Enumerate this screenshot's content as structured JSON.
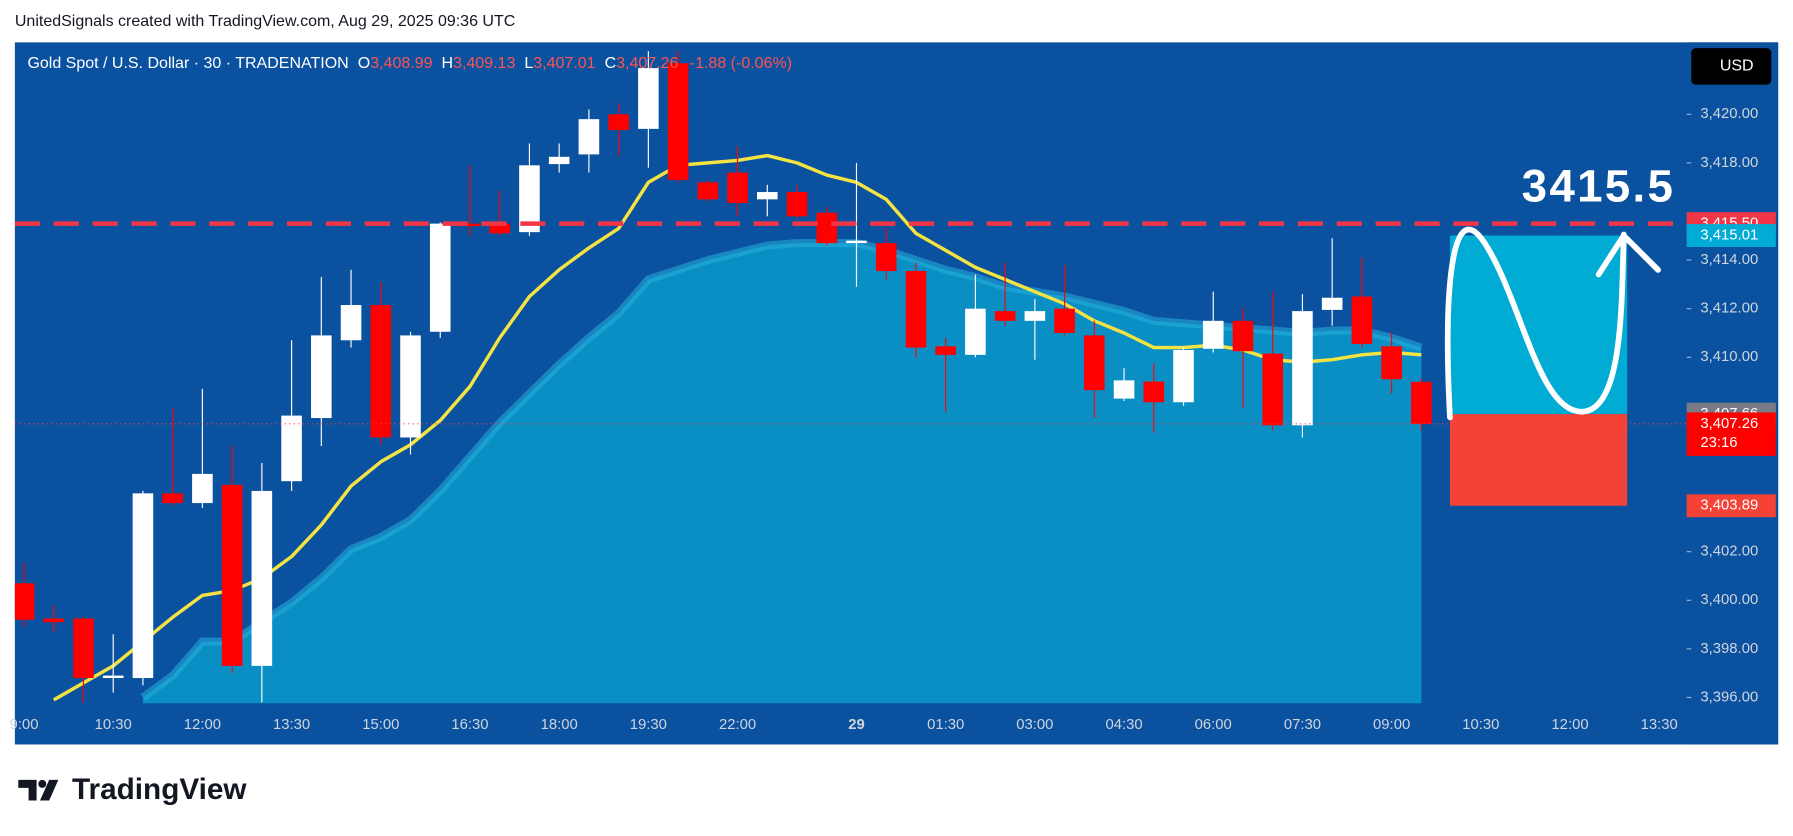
{
  "attribution": "UnitedSignals created with TradingView.com, Aug 29, 2025 09:36 UTC",
  "brand": "TradingView",
  "chart_data": {
    "type": "candlestick",
    "legend": {
      "symbol": "Gold Spot / U.S. Dollar · 30 · TRADENATION",
      "open_key": "O",
      "open": "3,408.99",
      "high_key": "H",
      "high": "3,409.13",
      "low_key": "L",
      "low": "3,407.01",
      "close_key": "C",
      "close": "3,407.26",
      "change": "-1.88 (-0.06%)"
    },
    "currency": "USD",
    "categories": [
      "9:00",
      null,
      null,
      "10:30",
      null,
      null,
      "12:00",
      null,
      null,
      "13:30",
      null,
      null,
      "15:00",
      null,
      null,
      "16:30",
      null,
      null,
      "18:00",
      null,
      null,
      "19:30",
      null,
      null,
      "22:00",
      null,
      null,
      null,
      "29",
      null,
      null,
      "01:30",
      null,
      null,
      "03:00",
      null,
      null,
      "04:30",
      null,
      null,
      "06:00",
      null,
      null,
      "07:30",
      null,
      null,
      "09:00",
      null,
      null,
      "10:30",
      null,
      null,
      "12:00",
      null,
      null,
      "13:30"
    ],
    "open": [
      3400.7,
      3399.25,
      3399.25,
      3396.8,
      3396.8,
      3404.4,
      3404.0,
      3404.75,
      3397.3,
      3404.9,
      3407.5,
      3410.7,
      3412.15,
      3406.7,
      3411.05,
      3415.5,
      3415.5,
      3415.15,
      3417.95,
      3418.35,
      3420.0,
      3419.4,
      3422.1,
      3417.2,
      3417.6,
      3416.5,
      3416.8,
      3415.95,
      3414.7,
      3414.7,
      3413.55,
      3410.45,
      3410.1,
      3411.9,
      3411.5,
      3412.0,
      3410.9,
      3408.3,
      3409.0,
      3408.15,
      3410.35,
      3411.5,
      3410.15,
      3407.2,
      3411.95,
      3412.5,
      3410.45,
      3408.99,
      null,
      null,
      null,
      null,
      null,
      null,
      null,
      null
    ],
    "high": [
      3401.55,
      3399.8,
      3399.3,
      3398.6,
      3404.5,
      3407.9,
      3408.7,
      3406.35,
      3405.65,
      3410.7,
      3413.3,
      3413.6,
      3413.1,
      3411.05,
      3415.55,
      3417.9,
      3416.85,
      3418.8,
      3418.8,
      3420.2,
      3420.45,
      3422.6,
      3422.6,
      3417.3,
      3418.7,
      3417.1,
      3417.1,
      3416.2,
      3418.0,
      3415.3,
      3413.9,
      3410.8,
      3413.4,
      3413.9,
      3412.4,
      3413.8,
      3411.5,
      3409.55,
      3409.75,
      3410.4,
      3412.7,
      3412.0,
      3412.7,
      3412.6,
      3414.9,
      3414.1,
      3411.05,
      3409.13,
      null,
      null,
      null,
      null,
      null,
      null,
      null,
      null
    ],
    "low": [
      3398.9,
      3398.7,
      3395.8,
      3396.2,
      3396.5,
      3403.9,
      3403.8,
      3397.0,
      3395.8,
      3404.5,
      3406.35,
      3410.4,
      3406.4,
      3406.0,
      3410.8,
      3415.0,
      3415.0,
      3415.0,
      3417.6,
      3417.6,
      3418.3,
      3417.8,
      3417.2,
      3416.4,
      3415.8,
      3415.8,
      3415.7,
      3414.6,
      3412.9,
      3413.2,
      3410.0,
      3407.75,
      3410.0,
      3411.3,
      3409.9,
      3410.9,
      3407.5,
      3408.2,
      3406.9,
      3408.0,
      3410.2,
      3407.9,
      3407.0,
      3406.7,
      3411.3,
      3410.4,
      3408.5,
      3407.01,
      null,
      null,
      null,
      null,
      null,
      null,
      null,
      null
    ],
    "close": [
      3399.2,
      3399.1,
      3396.8,
      3396.9,
      3404.4,
      3404.0,
      3405.2,
      3397.3,
      3404.5,
      3407.6,
      3410.9,
      3412.15,
      3406.7,
      3410.9,
      3415.5,
      3415.4,
      3415.1,
      3417.9,
      3418.25,
      3419.8,
      3419.35,
      3421.9,
      3417.3,
      3416.5,
      3416.35,
      3416.8,
      3415.8,
      3414.7,
      3414.8,
      3413.55,
      3410.4,
      3410.1,
      3412.0,
      3411.5,
      3411.9,
      3411.0,
      3408.65,
      3409.05,
      3408.15,
      3410.3,
      3411.5,
      3410.25,
      3407.2,
      3411.9,
      3412.45,
      3410.55,
      3409.1,
      3407.26,
      null,
      null,
      null,
      null,
      null,
      null,
      null,
      null
    ],
    "up_color": "#ffffff",
    "down_color": "#ff0000",
    "overlays": [
      {
        "kind": "area",
        "color": "#0a8fc4",
        "edge_color": "#27b0dc",
        "values": [
          null,
          null,
          null,
          null,
          3396.0,
          3396.9,
          3398.3,
          3398.3,
          3399.1,
          3399.9,
          3400.9,
          3402.1,
          3402.6,
          3403.3,
          3404.5,
          3405.9,
          3407.3,
          3408.5,
          3409.7,
          3410.8,
          3411.8,
          3413.2,
          3413.6,
          3414.0,
          3414.3,
          3414.6,
          3414.7,
          3414.7,
          3414.7,
          3414.4,
          3414.0,
          3413.6,
          3413.3,
          3412.9,
          3412.7,
          3412.5,
          3412.2,
          3411.9,
          3411.5,
          3411.4,
          3411.3,
          3411.2,
          3411.1,
          3411.0,
          3411.1,
          3411.1,
          3410.8,
          3410.4,
          null,
          null,
          null,
          null,
          null,
          null,
          null,
          null
        ]
      },
      {
        "kind": "line",
        "color": "#f5e342",
        "below_color": "#9be08a",
        "values": [
          null,
          3395.9,
          3396.6,
          3397.3,
          3398.3,
          3399.3,
          3400.2,
          3400.4,
          3400.9,
          3401.8,
          3403.1,
          3404.7,
          3405.7,
          3406.4,
          3407.4,
          3408.8,
          3410.8,
          3412.5,
          3413.6,
          3414.5,
          3415.3,
          3417.2,
          3417.9,
          3418.0,
          3418.1,
          3418.3,
          3418.0,
          3417.5,
          3417.2,
          3416.5,
          3415.1,
          3414.4,
          3413.7,
          3413.2,
          3412.7,
          3412.2,
          3411.5,
          3411.0,
          3410.4,
          3410.4,
          3410.5,
          3410.3,
          3409.9,
          3409.8,
          3409.9,
          3410.1,
          3410.2,
          3410.1,
          null,
          null,
          null,
          null,
          null,
          null,
          null,
          null
        ]
      }
    ],
    "ylim": [
      3395.76,
      3422.96
    ],
    "yticks": [
      {
        "value": 3396,
        "label": "3,396.00"
      },
      {
        "value": 3398,
        "label": "3,398.00"
      },
      {
        "value": 3400,
        "label": "3,400.00"
      },
      {
        "value": 3402,
        "label": "3,402.00"
      },
      {
        "value": 3410,
        "label": "3,410.00"
      },
      {
        "value": 3412,
        "label": "3,412.00"
      },
      {
        "value": 3414,
        "label": "3,414.00"
      },
      {
        "value": 3418,
        "label": "3,418.00"
      },
      {
        "value": 3420,
        "label": "3,420.00"
      }
    ],
    "hline": {
      "value": 3415.5,
      "color": "#f23645",
      "label": "3415.5"
    },
    "last_price_line": {
      "value": 3407.26,
      "color": "#ff3b3b"
    },
    "position": {
      "top": 3415.01,
      "entry": 3407.66,
      "bottom": 3403.89,
      "profit_color": "#00acd4",
      "loss_color": "#f44336"
    },
    "price_labels": [
      {
        "value": 3415.5,
        "label": "3,415.50",
        "color": "#f23645"
      },
      {
        "value": 3415.01,
        "label": "3,415.01",
        "color": "#00acd4"
      },
      {
        "value": 3407.66,
        "label": "3,407.66",
        "color": "#787b86"
      },
      {
        "value": 3407.26,
        "label": "3,407.26",
        "color": "#ff0000",
        "countdown": "23:16"
      },
      {
        "value": 3403.89,
        "label": "3,403.89",
        "color": "#f44336"
      }
    ]
  }
}
